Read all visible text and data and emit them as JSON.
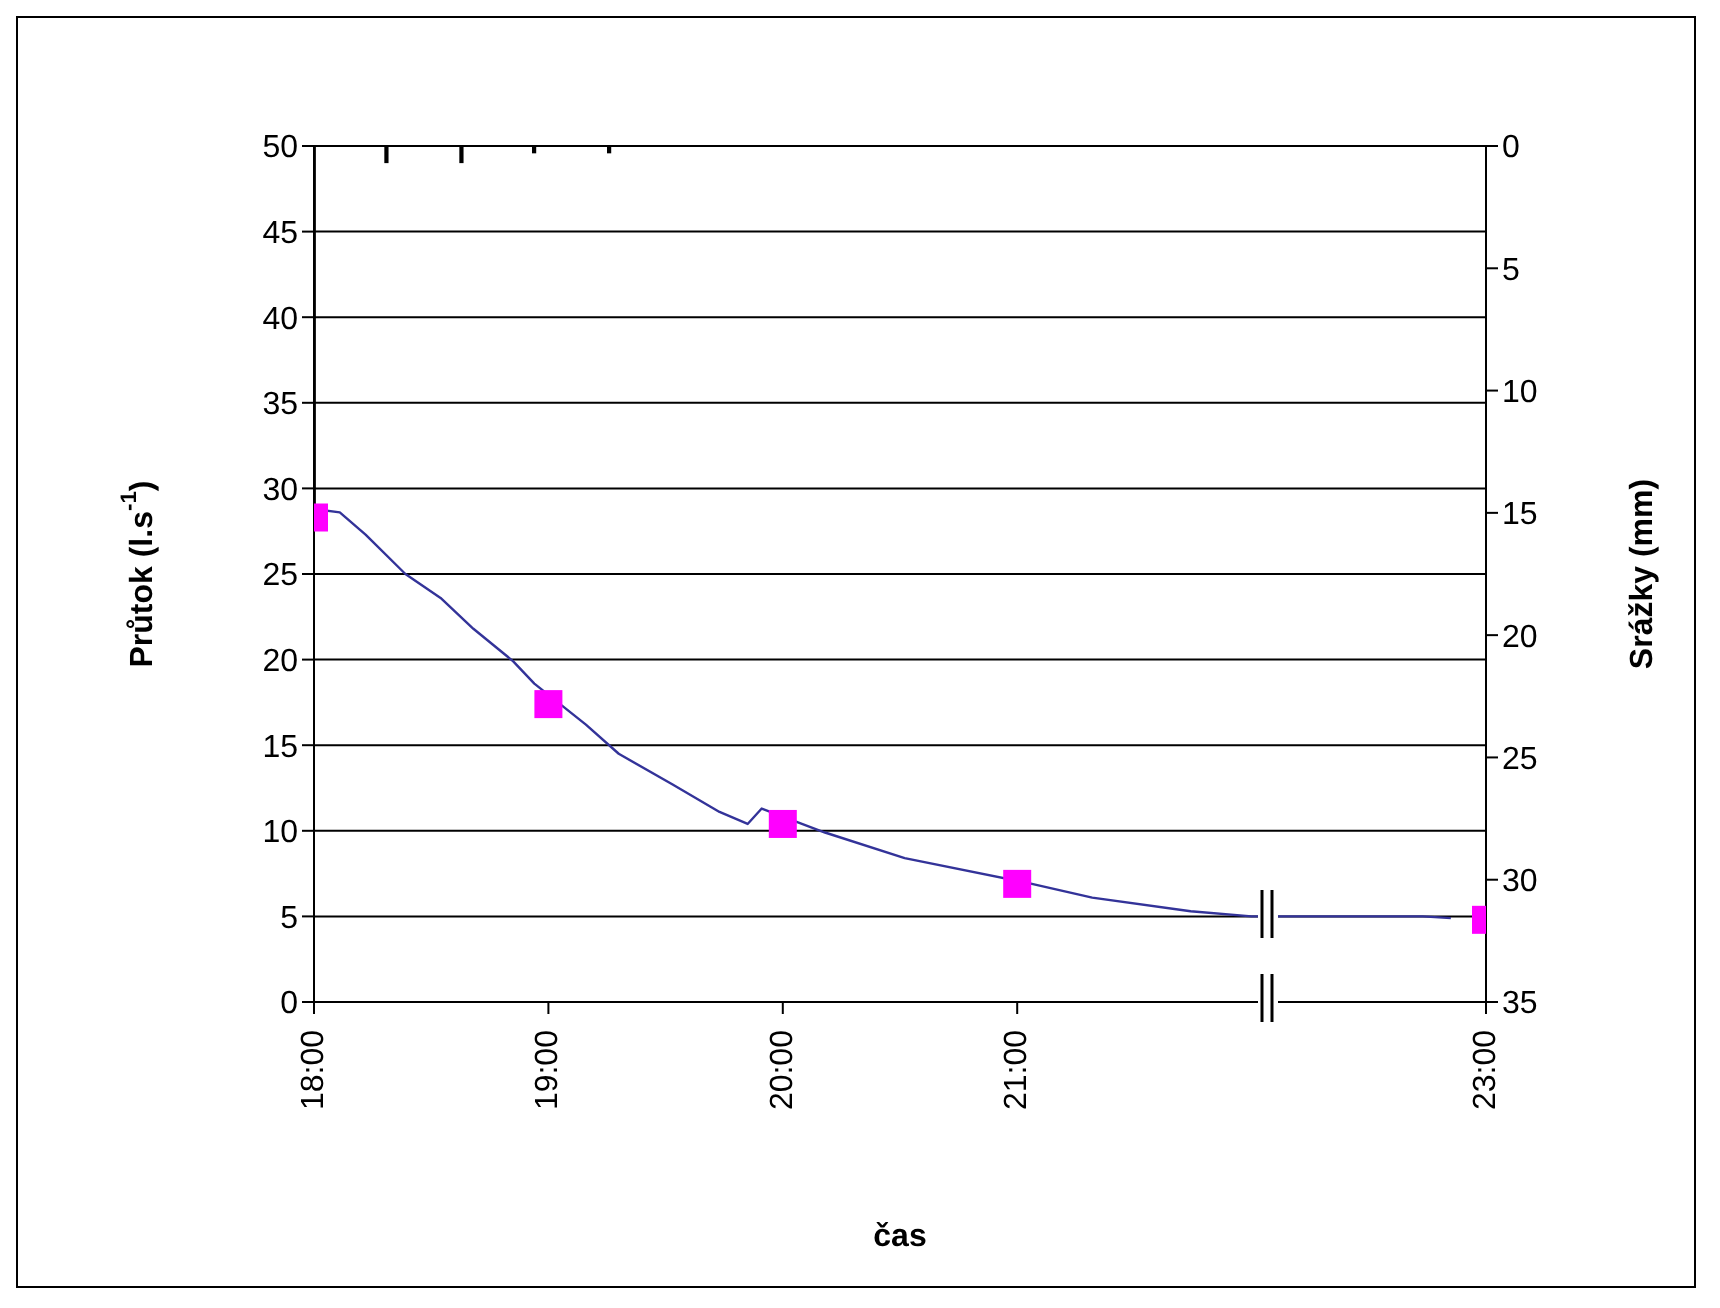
{
  "chart_data": {
    "type": "line",
    "xlabel": "čas",
    "ylabel": "Průtok (l.s$^{-1}$)",
    "y2label": "Srážky (mm)",
    "xlim": [
      18,
      23
    ],
    "xticks": [
      {
        "value": 18,
        "label": "18:00"
      },
      {
        "value": 19,
        "label": "19:00"
      },
      {
        "value": 20,
        "label": "20:00"
      },
      {
        "value": 21,
        "label": "21:00"
      },
      {
        "value": 23,
        "label": "23:00"
      }
    ],
    "ylim": [
      0,
      50
    ],
    "yticks": [
      0,
      5,
      10,
      15,
      20,
      25,
      30,
      35,
      40,
      45,
      50
    ],
    "y2lim": [
      35,
      0
    ],
    "y2ticks": [
      0,
      5,
      10,
      15,
      20,
      25,
      30,
      35
    ],
    "grid": "y",
    "series": [
      {
        "type": "bar",
        "axis": "y2",
        "color": "#000000",
        "x": [
          18,
          18.31,
          18.63,
          18.94,
          19.26
        ],
        "values": [
          14.8,
          0.7,
          0.7,
          0.3,
          0.3
        ]
      },
      {
        "color": "#333399",
        "marker": "none",
        "x": [
          18,
          18.11,
          18.22,
          18.39,
          18.54,
          18.68,
          18.85,
          18.94,
          19.16,
          19.3,
          19.53,
          19.73,
          19.85,
          19.91,
          20.02,
          20.18,
          20.52,
          21.03,
          21.32,
          21.74,
          22.0,
          22.17,
          22.73,
          22.85
        ],
        "values": [
          28.8,
          28.6,
          27.3,
          25.0,
          23.6,
          21.8,
          19.9,
          18.6,
          16.2,
          14.5,
          12.7,
          11.1,
          10.4,
          11.3,
          null,
          9.9,
          8.4,
          7.0,
          6.1,
          5.3,
          5.0,
          5.0,
          5.0,
          4.9
        ]
      },
      {
        "type": "scatter",
        "color": "#ff00ff",
        "marker": "square",
        "x": [
          18,
          19,
          20,
          21,
          23
        ],
        "values": [
          28.3,
          17.4,
          10.4,
          6.9,
          4.8
        ]
      }
    ]
  }
}
